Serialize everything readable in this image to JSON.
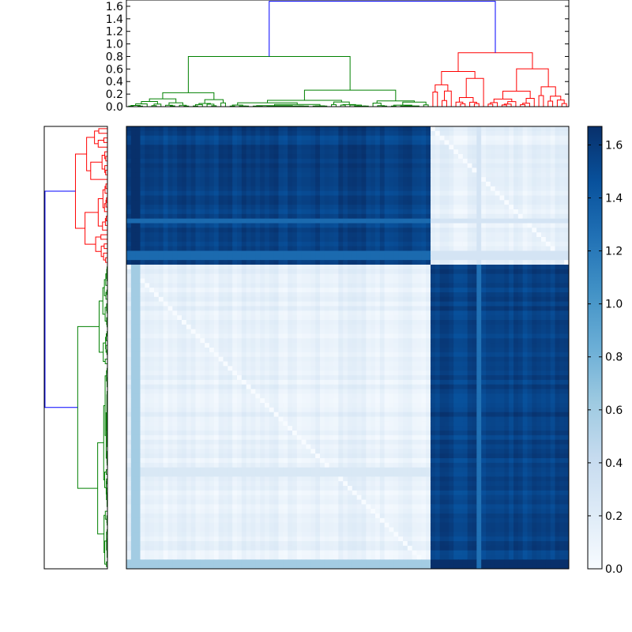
{
  "chart_data": [
    {
      "type": "dendrogram",
      "panel": "top",
      "ylim": [
        0,
        1.7
      ],
      "ytick_values": [
        0.0,
        0.2,
        0.4,
        0.6,
        0.8,
        1.0,
        1.2,
        1.4,
        1.6
      ],
      "yticks": [
        "0.0",
        "0.2",
        "0.4",
        "0.6",
        "0.8",
        "1.0",
        "1.2",
        "1.4",
        "1.6"
      ],
      "leaf_count": 96,
      "root_height": 1.68,
      "clusters": [
        {
          "color": "#008000",
          "leaves": 66,
          "height": 0.8
        },
        {
          "color": "#ff0000",
          "leaves": 30,
          "height": 0.86
        }
      ],
      "link_color_above_threshold": "#0000ff"
    },
    {
      "type": "dendrogram",
      "panel": "left",
      "orientation": "right",
      "root_height": 1.68,
      "clusters": [
        {
          "color": "#ff0000",
          "leaves": 30,
          "height": 0.86
        },
        {
          "color": "#008000",
          "leaves": 66,
          "height": 0.8
        }
      ],
      "link_color_above_threshold": "#0000ff"
    },
    {
      "type": "heatmap",
      "panel": "main",
      "size": 96,
      "colormap": "Blues",
      "block_split": 66,
      "within_cluster_range": [
        0.02,
        0.25
      ],
      "between_cluster_range": [
        1.45,
        1.67
      ],
      "special_rows": [
        {
          "index": 1,
          "within": 0.6,
          "between": 1.68
        },
        {
          "index": 27,
          "within": 0.28,
          "between": 1.3
        },
        {
          "index": 29,
          "within": 0.2,
          "between": 1.3
        },
        {
          "index": 94,
          "within": 0.65,
          "between": 1.3
        },
        {
          "index": 75,
          "within": 0.35,
          "between": 1.3
        }
      ]
    },
    {
      "type": "colorbar",
      "panel": "right",
      "range": [
        0,
        1.67
      ],
      "tick_values": [
        0.0,
        0.2,
        0.4,
        0.6,
        0.8,
        1.0,
        1.2,
        1.4,
        1.6
      ],
      "ticks": [
        "0.0",
        "0.2",
        "0.4",
        "0.6",
        "0.8",
        "1.0",
        "1.2",
        "1.4",
        "1.6"
      ],
      "colormap": "Blues"
    }
  ]
}
